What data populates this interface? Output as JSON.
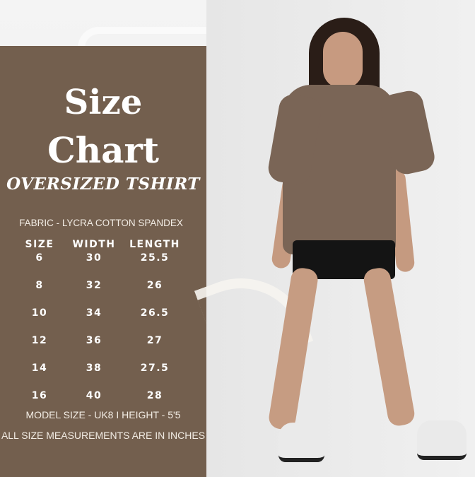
{
  "title_line1": "Size",
  "title_line2": "Chart",
  "subtitle": "OVERSIZED TSHIRT",
  "fabric": "FABRIC - LYCRA COTTON SPANDEX",
  "colors": {
    "panel": "#735f4e",
    "text": "#ffffff",
    "tshirt": "#7a6556"
  },
  "table": {
    "headers": [
      "SIZE",
      "WIDTH",
      "LENGTH"
    ],
    "rows": [
      [
        "6",
        "30",
        "25.5"
      ],
      [
        "8",
        "32",
        "26"
      ],
      [
        "10",
        "34",
        "26.5"
      ],
      [
        "12",
        "36",
        "27"
      ],
      [
        "14",
        "38",
        "27.5"
      ],
      [
        "16",
        "40",
        "28"
      ]
    ]
  },
  "model_note": "MODEL SIZE -  UK8   I    HEIGHT - 5'5",
  "units_note": "ALL SIZE MEASUREMENTS ARE IN INCHES"
}
